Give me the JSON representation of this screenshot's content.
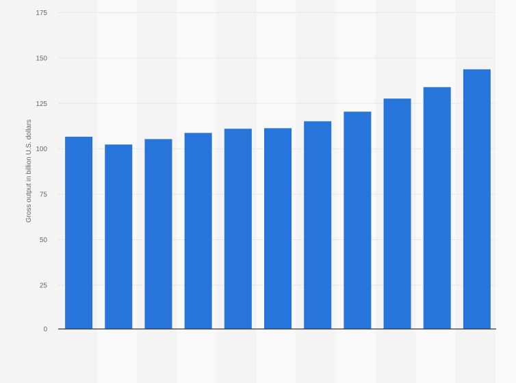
{
  "chart_data": {
    "type": "bar",
    "title": "",
    "xlabel": "",
    "ylabel": "Gross output in billion U.S. dollars",
    "ylim": [
      0,
      175
    ],
    "yticks": [
      0,
      25,
      50,
      75,
      100,
      125,
      150,
      175
    ],
    "grid": true,
    "bar_color": "#2775db",
    "values": [
      106.7,
      102.4,
      105.4,
      108.8,
      111.1,
      111.4,
      115.2,
      120.5,
      127.7,
      134.0,
      143.8
    ]
  }
}
